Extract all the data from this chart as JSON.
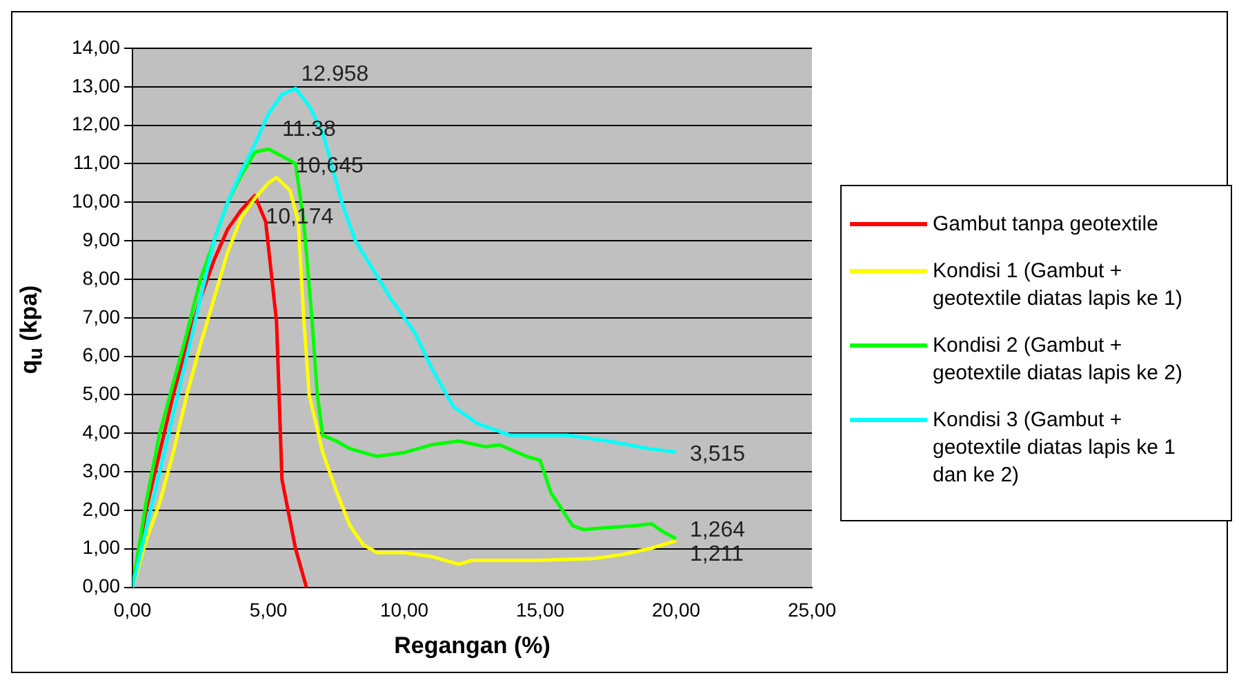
{
  "chart_data": {
    "type": "line",
    "xlabel": "Regangan (%)",
    "ylabel": "q$_{u}$ (kpa)",
    "xlim": [
      0,
      25
    ],
    "xticks": [
      {
        "value": 0,
        "label": "0,00"
      },
      {
        "value": 5,
        "label": "5,00"
      },
      {
        "value": 10,
        "label": "10,00"
      },
      {
        "value": 15,
        "label": "15,00"
      },
      {
        "value": 20,
        "label": "20,00"
      },
      {
        "value": 25,
        "label": "25,00"
      }
    ],
    "ylim": [
      0,
      14
    ],
    "yticks": [
      {
        "value": 0,
        "label": "0,00"
      },
      {
        "value": 1,
        "label": "1,00"
      },
      {
        "value": 2,
        "label": "2,00"
      },
      {
        "value": 3,
        "label": "3,00"
      },
      {
        "value": 4,
        "label": "4,00"
      },
      {
        "value": 5,
        "label": "5,00"
      },
      {
        "value": 6,
        "label": "6,00"
      },
      {
        "value": 7,
        "label": "7,00"
      },
      {
        "value": 8,
        "label": "8,00"
      },
      {
        "value": 9,
        "label": "9,00"
      },
      {
        "value": 10,
        "label": "10,00"
      },
      {
        "value": 11,
        "label": "11,00"
      },
      {
        "value": 12,
        "label": "12,00"
      },
      {
        "value": 13,
        "label": "13,00"
      },
      {
        "value": 14,
        "label": "14,00"
      }
    ],
    "grid": "y",
    "legend": "right",
    "marker": "none",
    "line_style": "solid",
    "series": [
      {
        "name": "Gambut tanpa geotextile",
        "color": "#ff0000",
        "x": [
          0,
          0.5,
          1,
          1.5,
          2,
          2.5,
          3,
          3.5,
          4,
          4.5,
          4.9,
          5.3,
          5.5,
          6,
          6.4
        ],
        "values": [
          0,
          2,
          3.5,
          5,
          6.3,
          7.5,
          8.5,
          9.3,
          9.8,
          10.174,
          9.5,
          6.9,
          2.8,
          1,
          0
        ]
      },
      {
        "name": "Kondisi 1 (Gambut + geotextile diatas lapis ke 1)",
        "color": "#ffff00",
        "x": [
          0,
          0.5,
          1,
          1.5,
          2,
          2.5,
          3,
          3.5,
          4,
          4.5,
          5,
          5.3,
          5.8,
          6.1,
          6.3,
          6.5,
          7,
          7.5,
          8,
          8.5,
          9,
          10,
          11,
          12,
          12.5,
          15,
          17,
          18,
          19,
          20
        ],
        "values": [
          0,
          1.2,
          2.2,
          3.5,
          5,
          6.3,
          7.5,
          8.7,
          9.6,
          10.1,
          10.5,
          10.645,
          10.3,
          9.5,
          7,
          5,
          3.5,
          2.5,
          1.6,
          1.1,
          0.9,
          0.9,
          0.8,
          0.6,
          0.7,
          0.7,
          0.75,
          0.85,
          1,
          1.211
        ]
      },
      {
        "name": "Kondisi 2 (Gambut + geotextile diatas lapis ke 2)",
        "color": "#00ff00",
        "x": [
          0,
          0.5,
          1,
          1.5,
          2,
          2.5,
          3,
          3.5,
          4,
          4.5,
          5,
          5.5,
          6,
          6.3,
          6.6,
          6.8,
          7,
          7.5,
          8,
          9,
          10,
          11,
          12,
          13,
          13.5,
          14.5,
          15,
          15.4,
          16.2,
          16.6,
          17.5,
          18.5,
          19.1,
          19.5,
          20
        ],
        "values": [
          0,
          2.2,
          4,
          5.3,
          6.6,
          8,
          9,
          10,
          10.7,
          11.3,
          11.38,
          11.2,
          11,
          9.5,
          7,
          5,
          3.95,
          3.8,
          3.6,
          3.4,
          3.5,
          3.7,
          3.8,
          3.65,
          3.7,
          3.4,
          3.3,
          2.45,
          1.6,
          1.5,
          1.55,
          1.6,
          1.65,
          1.45,
          1.264
        ]
      },
      {
        "name": "Kondisi 3 (Gambut + geotextile diatas lapis ke 1 dan ke 2)",
        "color": "#00ffff",
        "x": [
          0,
          0.5,
          1,
          1.5,
          2,
          2.5,
          3,
          3.5,
          4,
          4.5,
          5,
          5.5,
          6,
          6.5,
          7,
          7.7,
          8.2,
          9.5,
          10.4,
          11,
          11.8,
          12.7,
          13.9,
          16,
          17.5,
          19,
          20
        ],
        "values": [
          0,
          1.5,
          3,
          4.5,
          6,
          7.5,
          9,
          10,
          10.8,
          11.5,
          12.3,
          12.8,
          12.958,
          12.5,
          11.8,
          10,
          9,
          7.5,
          6.6,
          5.7,
          4.7,
          4.25,
          3.95,
          3.95,
          3.8,
          3.6,
          3.515
        ]
      }
    ],
    "annotations": [
      {
        "text": "12.958",
        "x": 6,
        "y": 12.958
      },
      {
        "text": "11.38",
        "x": 5,
        "y": 11.38
      },
      {
        "text": "10,645",
        "x": 5.3,
        "y": 10.645
      },
      {
        "text": "10,174",
        "x": 4.5,
        "y": 10.174
      },
      {
        "text": "3,515",
        "x": 20,
        "y": 3.515
      },
      {
        "text": "1,264",
        "x": 20,
        "y": 1.264
      },
      {
        "text": "1,211",
        "x": 20,
        "y": 1.211
      }
    ]
  }
}
